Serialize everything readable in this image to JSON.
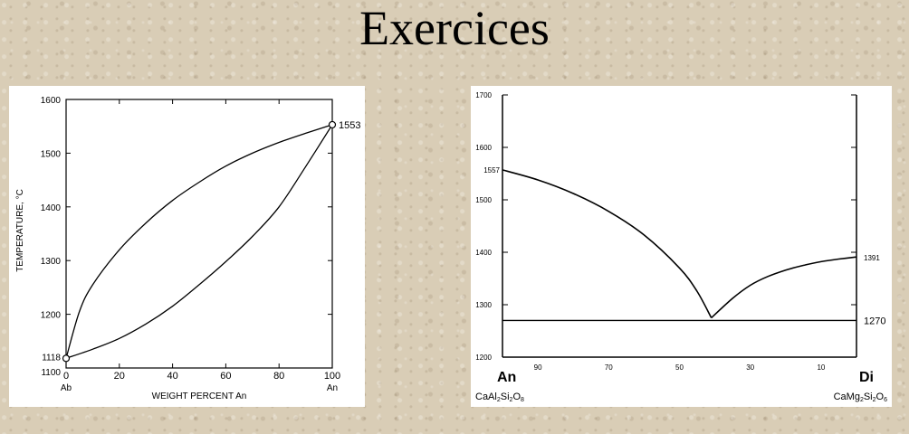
{
  "header": {
    "title": "Exercices"
  },
  "chart_data": [
    {
      "type": "line",
      "ylabel": "TEMPERATURE, °C",
      "xlabel": "WEIGHT PERCENT  An",
      "ylim": [
        1100,
        1600
      ],
      "xlim": [
        0,
        100
      ],
      "yticks": [
        1100,
        1200,
        1300,
        1400,
        1500,
        1600
      ],
      "xticks": [
        0,
        20,
        40,
        60,
        80,
        100
      ],
      "end_labels": {
        "left": "Ab",
        "right": "An"
      },
      "points": [
        {
          "x": 0,
          "y": 1118,
          "label": "1118"
        },
        {
          "x": 100,
          "y": 1553,
          "label": "1553"
        }
      ],
      "series": [
        {
          "x": [
            0,
            5,
            10,
            20,
            30,
            40,
            50,
            60,
            70,
            80,
            90,
            100
          ],
          "y": [
            1118,
            1205,
            1255,
            1320,
            1370,
            1412,
            1446,
            1476,
            1500,
            1520,
            1537,
            1553
          ]
        },
        {
          "x": [
            0,
            10,
            20,
            30,
            40,
            50,
            60,
            70,
            80,
            90,
            100
          ],
          "y": [
            1118,
            1135,
            1155,
            1182,
            1215,
            1255,
            1298,
            1345,
            1400,
            1475,
            1553
          ]
        }
      ]
    },
    {
      "type": "line",
      "ylim": [
        1200,
        1700
      ],
      "xlim": [
        0,
        100
      ],
      "x_reversed": true,
      "yticks": [
        1200,
        1300,
        1400,
        1500,
        1600,
        1700
      ],
      "xticks": [
        90,
        70,
        50,
        30,
        10
      ],
      "end_labels": {
        "left": "An",
        "right": "Di"
      },
      "formulas": {
        "left": {
          "parts": [
            "CaAl",
            "2",
            "Si",
            "2",
            "O",
            "8"
          ]
        },
        "right": {
          "parts": [
            "CaMg",
            "2",
            "Si",
            "2",
            "O",
            "6"
          ]
        }
      },
      "point_labels": {
        "left": "1557",
        "right": "1391",
        "eutectic_line": "1270"
      },
      "series": [
        {
          "x": [
            100,
            90,
            80,
            70,
            60,
            50,
            45,
            41
          ],
          "y": [
            1557,
            1538,
            1512,
            1478,
            1433,
            1370,
            1325,
            1275
          ]
        },
        {
          "x": [
            41,
            35,
            30,
            25,
            20,
            15,
            10,
            5,
            0
          ],
          "y": [
            1275,
            1312,
            1337,
            1354,
            1366,
            1375,
            1382,
            1387,
            1391
          ]
        }
      ],
      "hline": 1270
    }
  ]
}
